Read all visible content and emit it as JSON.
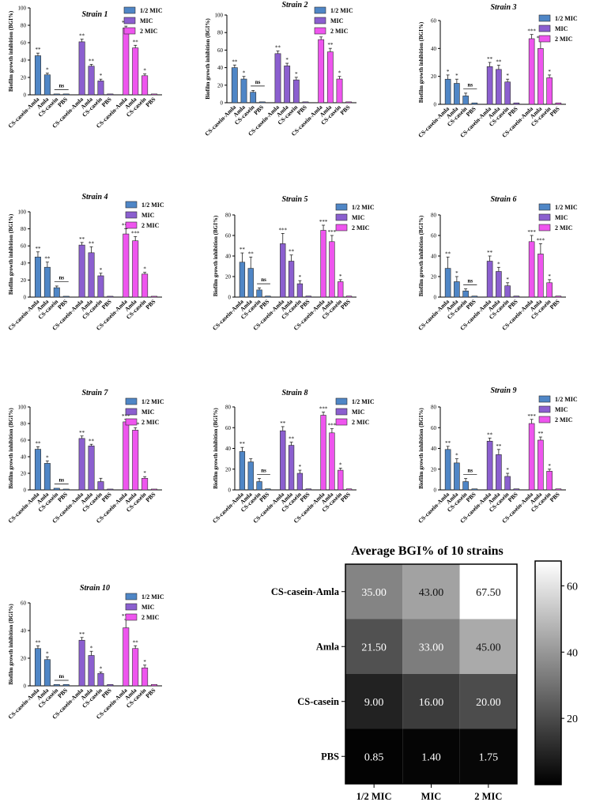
{
  "colors": {
    "half_mic": "#4f86c6",
    "mic": "#8b5fcf",
    "two_mic": "#ee55ee"
  },
  "chart_data": [
    {
      "type": "bar",
      "title": "Strain 1",
      "ylabel": "Biofilm growth inhibition (BGI%)",
      "ylim": [
        0,
        100
      ],
      "yticks": [
        0,
        20,
        40,
        60,
        80,
        100
      ],
      "categories": [
        "CS-casein-Amla",
        "Amla",
        "CS-casein",
        "PBS"
      ],
      "legend": [
        "1/2 MIC",
        "MIC",
        "2 MIC"
      ],
      "series": [
        {
          "name": "1/2 MIC",
          "values": [
            45,
            23,
            1,
            1
          ],
          "errors": [
            3,
            2,
            0,
            0
          ],
          "sig": [
            "**",
            "*",
            "",
            ""
          ]
        },
        {
          "name": "MIC",
          "values": [
            61,
            33,
            16,
            1
          ],
          "errors": [
            3,
            2,
            2,
            0
          ],
          "sig": [
            "**",
            "**",
            "*",
            ""
          ]
        },
        {
          "name": "2 MIC",
          "values": [
            77,
            54,
            22,
            1
          ],
          "errors": [
            2,
            3,
            2,
            0
          ],
          "sig": [
            "***",
            "**",
            "*",
            ""
          ]
        }
      ],
      "ns_label": "ns"
    },
    {
      "type": "bar",
      "title": "Strain 2",
      "ylabel": "Biofilm growth inhibition (BGI%)",
      "ylim": [
        0,
        100
      ],
      "yticks": [
        0,
        20,
        40,
        60,
        80,
        100
      ],
      "categories": [
        "CS-casein-Amla",
        "Amla",
        "CS-casein",
        "PBS"
      ],
      "legend": [
        "1/2 MIC",
        "MIC",
        "2 MIC"
      ],
      "series": [
        {
          "name": "1/2 MIC",
          "values": [
            40,
            27,
            12,
            1
          ],
          "errors": [
            3,
            3,
            2,
            0
          ],
          "sig": [
            "**",
            "*",
            "",
            ""
          ]
        },
        {
          "name": "MIC",
          "values": [
            56,
            42,
            26,
            1
          ],
          "errors": [
            3,
            3,
            3,
            0
          ],
          "sig": [
            "**",
            "*",
            "*",
            ""
          ]
        },
        {
          "name": "2 MIC",
          "values": [
            72,
            58,
            27,
            1
          ],
          "errors": [
            3,
            4,
            3,
            0
          ],
          "sig": [
            "***",
            "**",
            "*",
            ""
          ]
        }
      ],
      "ns_label": "ns"
    },
    {
      "type": "bar",
      "title": "Strain 3",
      "ylabel": "Biofilm growth inhibition (BGI%)",
      "ylim": [
        0,
        60
      ],
      "yticks": [
        0,
        20,
        40,
        60
      ],
      "categories": [
        "CS-casein-Amla",
        "Amla",
        "CS-casein",
        "PBS"
      ],
      "legend": [
        "1/2 MIC",
        "MIC",
        "2 MIC"
      ],
      "series": [
        {
          "name": "1/2 MIC",
          "values": [
            18,
            15,
            6,
            1
          ],
          "errors": [
            3,
            3,
            2,
            0
          ],
          "sig": [
            "*",
            "*",
            "",
            ""
          ]
        },
        {
          "name": "MIC",
          "values": [
            27,
            25,
            16,
            1
          ],
          "errors": [
            3,
            3,
            2,
            0
          ],
          "sig": [
            "**",
            "**",
            "*",
            ""
          ]
        },
        {
          "name": "2 MIC",
          "values": [
            47,
            40,
            19,
            1
          ],
          "errors": [
            3,
            5,
            2,
            0
          ],
          "sig": [
            "***",
            "***",
            "*",
            ""
          ]
        }
      ],
      "ns_label": "ns"
    },
    {
      "type": "bar",
      "title": "Strain 4",
      "ylabel": "Biofilm growth inhibition (BGI%)",
      "ylim": [
        0,
        100
      ],
      "yticks": [
        0,
        20,
        40,
        60,
        80,
        100
      ],
      "categories": [
        "CS-casein-Amla",
        "Amla",
        "CS-casein",
        "PBS"
      ],
      "legend": [
        "1/2 MIC",
        "MIC",
        "2 MIC"
      ],
      "series": [
        {
          "name": "1/2 MIC",
          "values": [
            47,
            35,
            11,
            1
          ],
          "errors": [
            6,
            6,
            2,
            0
          ],
          "sig": [
            "**",
            "**",
            "",
            ""
          ]
        },
        {
          "name": "MIC",
          "values": [
            61,
            52,
            25,
            1
          ],
          "errors": [
            3,
            7,
            3,
            0
          ],
          "sig": [
            "**",
            "**",
            "*",
            ""
          ]
        },
        {
          "name": "2 MIC",
          "values": [
            74,
            66,
            27,
            1
          ],
          "errors": [
            6,
            5,
            2,
            0
          ],
          "sig": [
            "***",
            "***",
            "*",
            ""
          ]
        }
      ],
      "ns_label": "ns"
    },
    {
      "type": "bar",
      "title": "Strain 5",
      "ylabel": "Biofilm growth inhibition (BGI%)",
      "ylim": [
        0,
        80
      ],
      "yticks": [
        0,
        20,
        40,
        60,
        80
      ],
      "categories": [
        "CS-casein-Amla",
        "Amla",
        "CS-casein",
        "PBS"
      ],
      "legend": [
        "1/2 MIC",
        "MIC",
        "2 MIC"
      ],
      "series": [
        {
          "name": "1/2 MIC",
          "values": [
            34,
            28,
            7,
            1
          ],
          "errors": [
            9,
            11,
            2,
            0
          ],
          "sig": [
            "**",
            "**",
            "",
            ""
          ]
        },
        {
          "name": "MIC",
          "values": [
            52,
            35,
            13,
            1
          ],
          "errors": [
            10,
            6,
            3,
            0
          ],
          "sig": [
            "***",
            "**",
            "*",
            ""
          ]
        },
        {
          "name": "2 MIC",
          "values": [
            65,
            54,
            15,
            1
          ],
          "errors": [
            5,
            6,
            2,
            0
          ],
          "sig": [
            "***",
            "***",
            "*",
            ""
          ]
        }
      ],
      "ns_label": "ns"
    },
    {
      "type": "bar",
      "title": "Strain 6",
      "ylabel": "Biofilm growth inhibition (BGI%)",
      "ylim": [
        0,
        80
      ],
      "yticks": [
        0,
        20,
        40,
        60,
        80
      ],
      "categories": [
        "CS-casein-Amla",
        "Amla",
        "CS-casein",
        "PBS"
      ],
      "legend": [
        "1/2 MIC",
        "MIC",
        "2 MIC"
      ],
      "series": [
        {
          "name": "1/2 MIC",
          "values": [
            28,
            15,
            6,
            1
          ],
          "errors": [
            11,
            5,
            2,
            0
          ],
          "sig": [
            "**",
            "*",
            "",
            ""
          ]
        },
        {
          "name": "MIC",
          "values": [
            35,
            25,
            11,
            1
          ],
          "errors": [
            5,
            4,
            3,
            0
          ],
          "sig": [
            "**",
            "*",
            "*",
            ""
          ]
        },
        {
          "name": "2 MIC",
          "values": [
            54,
            42,
            14,
            1
          ],
          "errors": [
            6,
            10,
            3,
            0
          ],
          "sig": [
            "***",
            "***",
            "*",
            ""
          ]
        }
      ],
      "ns_label": "ns"
    },
    {
      "type": "bar",
      "title": "Strain 7",
      "ylabel": "Biofilm growth inhibition (BGI%)",
      "ylim": [
        0,
        100
      ],
      "yticks": [
        0,
        20,
        40,
        60,
        80,
        100
      ],
      "categories": [
        "CS-casein-Amla",
        "Amla",
        "CS-casein",
        "PBS"
      ],
      "legend": [
        "1/2 MIC",
        "MIC",
        "2 MIC"
      ],
      "series": [
        {
          "name": "1/2 MIC",
          "values": [
            49,
            32,
            2,
            1
          ],
          "errors": [
            3,
            3,
            0,
            0
          ],
          "sig": [
            "**",
            "*",
            "",
            ""
          ]
        },
        {
          "name": "MIC",
          "values": [
            62,
            53,
            10,
            1
          ],
          "errors": [
            3,
            2,
            4,
            0
          ],
          "sig": [
            "**",
            "**",
            "",
            ""
          ]
        },
        {
          "name": "2 MIC",
          "values": [
            82,
            72,
            14,
            1
          ],
          "errors": [
            3,
            3,
            2,
            0
          ],
          "sig": [
            "***",
            "***",
            "*",
            ""
          ]
        }
      ],
      "ns_label": "ns"
    },
    {
      "type": "bar",
      "title": "Strain 8",
      "ylabel": "Biofilm growth inhibition (BGI%)",
      "ylim": [
        0,
        80
      ],
      "yticks": [
        0,
        20,
        40,
        60,
        80
      ],
      "categories": [
        "CS-casein-Amla",
        "Amla",
        "CS-casein",
        "PBS"
      ],
      "legend": [
        "1/2 MIC",
        "MIC",
        "2 MIC"
      ],
      "series": [
        {
          "name": "1/2 MIC",
          "values": [
            37,
            27,
            8,
            1
          ],
          "errors": [
            4,
            3,
            3,
            0
          ],
          "sig": [
            "**",
            "",
            "",
            ""
          ]
        },
        {
          "name": "MIC",
          "values": [
            57,
            43,
            16,
            1
          ],
          "errors": [
            4,
            3,
            3,
            0
          ],
          "sig": [
            "**",
            "**",
            "*",
            ""
          ]
        },
        {
          "name": "2 MIC",
          "values": [
            72,
            55,
            19,
            1
          ],
          "errors": [
            3,
            4,
            2,
            0
          ],
          "sig": [
            "***",
            "***",
            "*",
            ""
          ]
        }
      ],
      "ns_label": "ns"
    },
    {
      "type": "bar",
      "title": "Strain 9",
      "ylabel": "Biofilm growth inhibition (BGI%)",
      "ylim": [
        0,
        80
      ],
      "yticks": [
        0,
        20,
        40,
        60,
        80
      ],
      "categories": [
        "CS-casein-Amla",
        "Amla",
        "CS-casein",
        "PBS"
      ],
      "legend": [
        "1/2 MIC",
        "MIC",
        "2 MIC"
      ],
      "series": [
        {
          "name": "1/2 MIC",
          "values": [
            39,
            26,
            8,
            1
          ],
          "errors": [
            3,
            4,
            3,
            0
          ],
          "sig": [
            "**",
            "*",
            "",
            ""
          ]
        },
        {
          "name": "MIC",
          "values": [
            47,
            34,
            13,
            1
          ],
          "errors": [
            3,
            5,
            3,
            0
          ],
          "sig": [
            "**",
            "**",
            "*",
            ""
          ]
        },
        {
          "name": "2 MIC",
          "values": [
            64,
            48,
            18,
            1
          ],
          "errors": [
            4,
            3,
            2,
            0
          ],
          "sig": [
            "***",
            "**",
            "*",
            ""
          ]
        }
      ],
      "ns_label": "ns"
    },
    {
      "type": "bar",
      "title": "Strain 10",
      "ylabel": "Biofilm growth inhibition (BGI%)",
      "ylim": [
        0,
        60
      ],
      "yticks": [
        0,
        20,
        40,
        60
      ],
      "categories": [
        "CS-casein-Amla",
        "Amla",
        "CS-casein",
        "PBS"
      ],
      "legend": [
        "1/2 MIC",
        "MIC",
        "2 MIC"
      ],
      "series": [
        {
          "name": "1/2 MIC",
          "values": [
            27,
            19,
            1,
            1
          ],
          "errors": [
            2,
            2,
            0,
            0
          ],
          "sig": [
            "**",
            "*",
            "",
            ""
          ]
        },
        {
          "name": "MIC",
          "values": [
            33,
            22,
            9,
            1
          ],
          "errors": [
            2,
            3,
            1,
            0
          ],
          "sig": [
            "**",
            "*",
            "*",
            ""
          ]
        },
        {
          "name": "2 MIC",
          "values": [
            42,
            27,
            13,
            1
          ],
          "errors": [
            6,
            2,
            2,
            0
          ],
          "sig": [
            "***",
            "**",
            "*",
            ""
          ]
        }
      ],
      "ns_label": "ns"
    },
    {
      "type": "heatmap",
      "title": "Average BGI% of 10 strains",
      "rows": [
        "CS-casein-Amla",
        "Amla",
        "CS-casein",
        "PBS"
      ],
      "columns": [
        "1/2 MIC",
        "MIC",
        "2 MIC"
      ],
      "values": [
        [
          "35.00",
          "43.00",
          "67.50"
        ],
        [
          "21.50",
          "33.00",
          "45.00"
        ],
        [
          "9.00",
          "16.00",
          "20.00"
        ],
        [
          "0.85",
          "1.40",
          "1.75"
        ]
      ],
      "colorbar_ticks": [
        "20",
        "40",
        "60"
      ],
      "vmin": 0,
      "vmax": 67.5
    }
  ]
}
